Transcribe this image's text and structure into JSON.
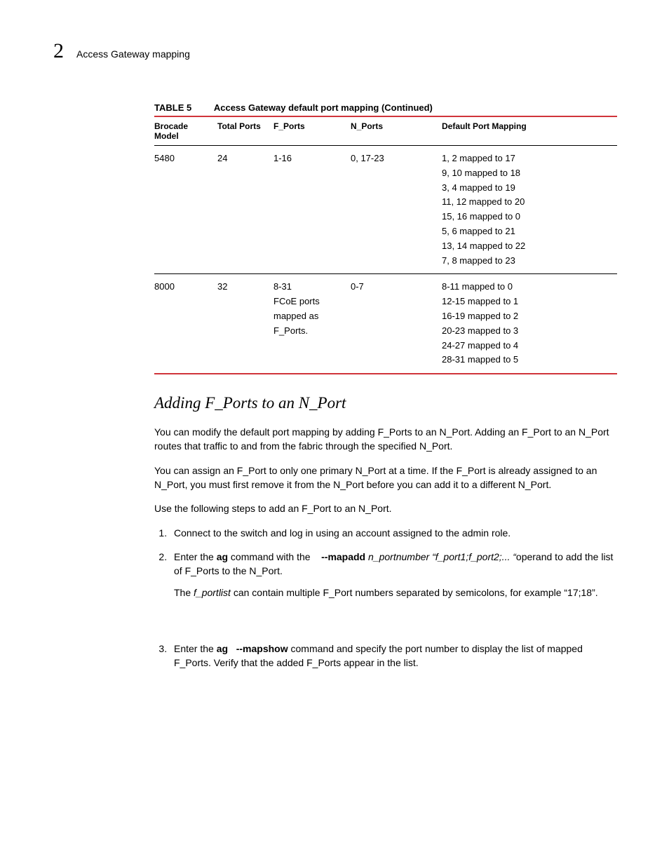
{
  "header": {
    "chapter_number": "2",
    "breadcrumb": "Access Gateway mapping"
  },
  "table": {
    "label": "TABLE 5",
    "title": "Access Gateway default port mapping  (Continued)",
    "columns": [
      "Brocade Model",
      "Total Ports",
      "F_Ports",
      "N_Ports",
      "Default Port Mapping"
    ],
    "rows": [
      {
        "model": "5480",
        "total": "24",
        "fports": "1-16",
        "nports": "0, 17-23",
        "mapping": [
          "1, 2 mapped to 17",
          "9, 10 mapped to 18",
          "3, 4 mapped to 19",
          "11, 12 mapped to 20",
          "15, 16 mapped to 0",
          "5, 6 mapped to 21",
          "13, 14 mapped to 22",
          "7, 8 mapped to 23"
        ]
      },
      {
        "model": "8000",
        "total": "32",
        "fports": "8-31\nFCoE ports mapped as F_Ports.",
        "nports": "0-7",
        "mapping": [
          "8-11 mapped to 0",
          "12-15 mapped to 1",
          "16-19 mapped to 2",
          "20-23 mapped to 3",
          "24-27 mapped to 4",
          "28-31 mapped to 5"
        ]
      }
    ]
  },
  "section": {
    "title": "Adding F_Ports to an N_Port",
    "p1": "You can modify the default port mapping by adding F_Ports to an N_Port. Adding an F_Port to an N_Port routes that traffic to and from the fabric through the specified N_Port.",
    "p2": "You can assign an F_Port to only one primary N_Port at a time. If the F_Port is already assigned to an N_Port, you must first remove it from the N_Port before you can add it to a different N_Port.",
    "p3": "Use the following steps to add an F_Port to an N_Port.",
    "step1": "Connect to the switch and log in using an account assigned to the admin role.",
    "step2_pre": "Enter the ",
    "step2_cmd": "ag",
    "step2_mid": " command with the ",
    "step2_opt": "mapadd",
    "step2_args": " n_portnumber “f_port1;f_port2;... “",
    "step2_post": "operand to add the list of F_Ports to the N_Port.",
    "step2_note_pre": "The ",
    "step2_note_ital": "f_portlist",
    "step2_note_post": " can contain multiple F_Port numbers separated by semicolons, for example “17;18”.",
    "step3_pre": "Enter the ",
    "step3_cmd": "ag ",
    "step3_opt": "mapshow",
    "step3_post": " command and specify the port number to display the list of mapped F_Ports. Verify that the added F_Ports appear in the list."
  }
}
